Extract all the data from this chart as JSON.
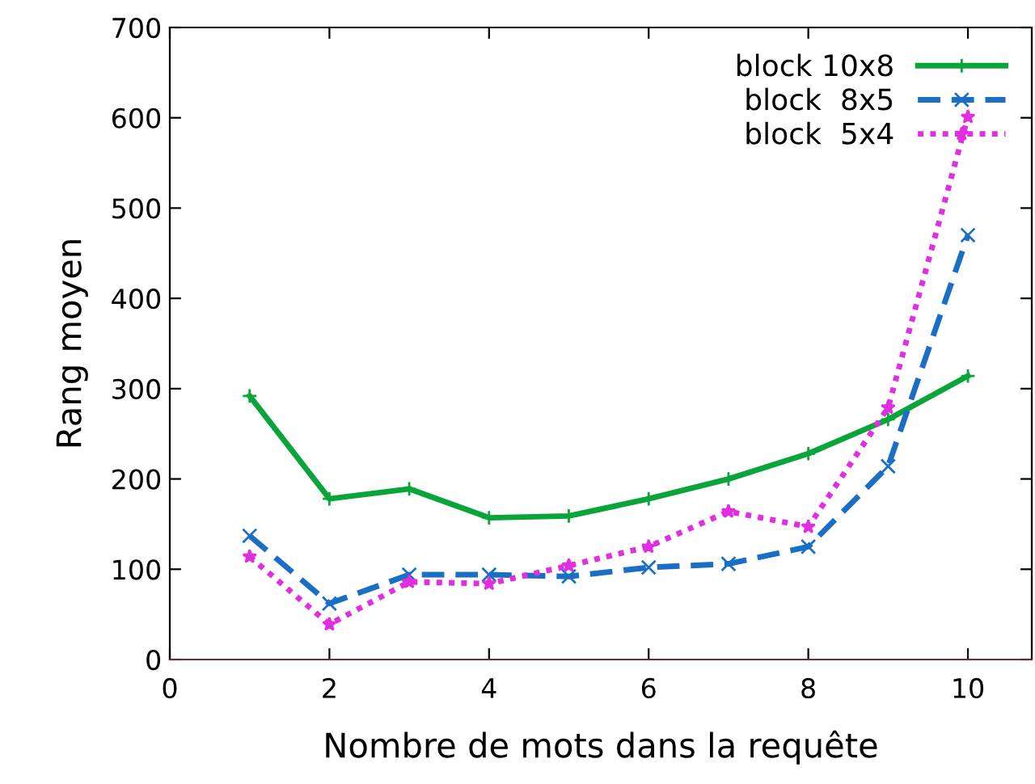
{
  "chart_data": {
    "type": "line",
    "xlabel": "Nombre de mots dans la requête",
    "ylabel": "Rang moyen",
    "x": [
      1,
      2,
      3,
      4,
      5,
      6,
      7,
      8,
      9,
      10
    ],
    "series": [
      {
        "name": "block 10x8",
        "color": "#0aa53a",
        "line_style": "solid",
        "marker": "plus",
        "values": [
          292,
          178,
          189,
          157,
          159,
          178,
          200,
          228,
          266,
          314
        ]
      },
      {
        "name": "block  8x5",
        "color": "#1a6fc4",
        "line_style": "dashed",
        "marker": "cross",
        "values": [
          137,
          62,
          94,
          94,
          92,
          102,
          106,
          125,
          214,
          470
        ]
      },
      {
        "name": "block  5x4",
        "color": "#e02ee0",
        "line_style": "dotted",
        "marker": "star",
        "values": [
          114,
          39,
          86,
          84,
          104,
          125,
          164,
          147,
          279,
          601
        ]
      }
    ],
    "xlim": [
      0,
      10.8
    ],
    "xticks": [
      0,
      2,
      4,
      6,
      8,
      10
    ],
    "ylim": [
      0,
      700
    ],
    "yticks": [
      0,
      100,
      200,
      300,
      400,
      500,
      600,
      700
    ],
    "grid": false,
    "legend": "top right"
  }
}
